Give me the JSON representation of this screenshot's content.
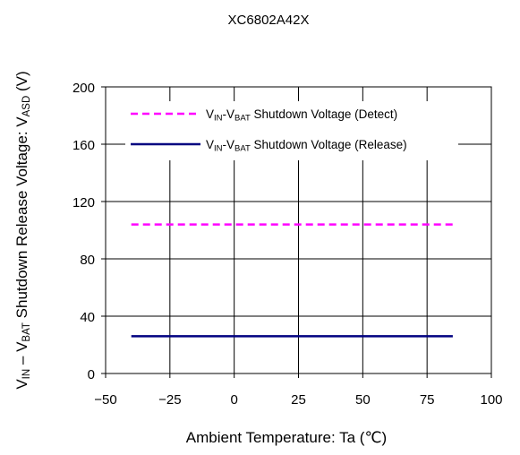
{
  "chart_data": {
    "type": "line",
    "title": "XC6802A42X",
    "xlabel": "Ambient Temperature: Ta (℃)",
    "ylabel": {
      "p1": "V",
      "s1": "IN",
      "p2": " – V",
      "s2": "BAT",
      "p3": " Shutdown Release Voltage: V",
      "s3": "ASD",
      "p4": " (V)"
    },
    "xlim": [
      -50,
      100
    ],
    "ylim": [
      0,
      200
    ],
    "xticks": [
      -50,
      -25,
      0,
      25,
      50,
      75,
      100
    ],
    "yticks": [
      0,
      40,
      80,
      120,
      160,
      200
    ],
    "xtick_labels": [
      "−50",
      "−25",
      "0",
      "25",
      "50",
      "75",
      "100"
    ],
    "ytick_labels": [
      "0",
      "40",
      "80",
      "120",
      "160",
      "200"
    ],
    "grid": true,
    "legend_position": "top",
    "series": [
      {
        "legend": {
          "p1": "V",
          "s1": "IN",
          "p2": "-V",
          "s2": "BAT",
          "p3": " Shutdown Voltage (Detect)"
        },
        "color": "#ff00ff",
        "dash": "dashed",
        "x": [
          -40,
          85
        ],
        "y": [
          104,
          104
        ]
      },
      {
        "legend": {
          "p1": "V",
          "s1": "IN",
          "p2": "-V",
          "s2": "BAT",
          "p3": " Shutdown Voltage (Release)"
        },
        "color": "#000080",
        "dash": "solid",
        "x": [
          -40,
          85
        ],
        "y": [
          26,
          26
        ]
      }
    ]
  }
}
